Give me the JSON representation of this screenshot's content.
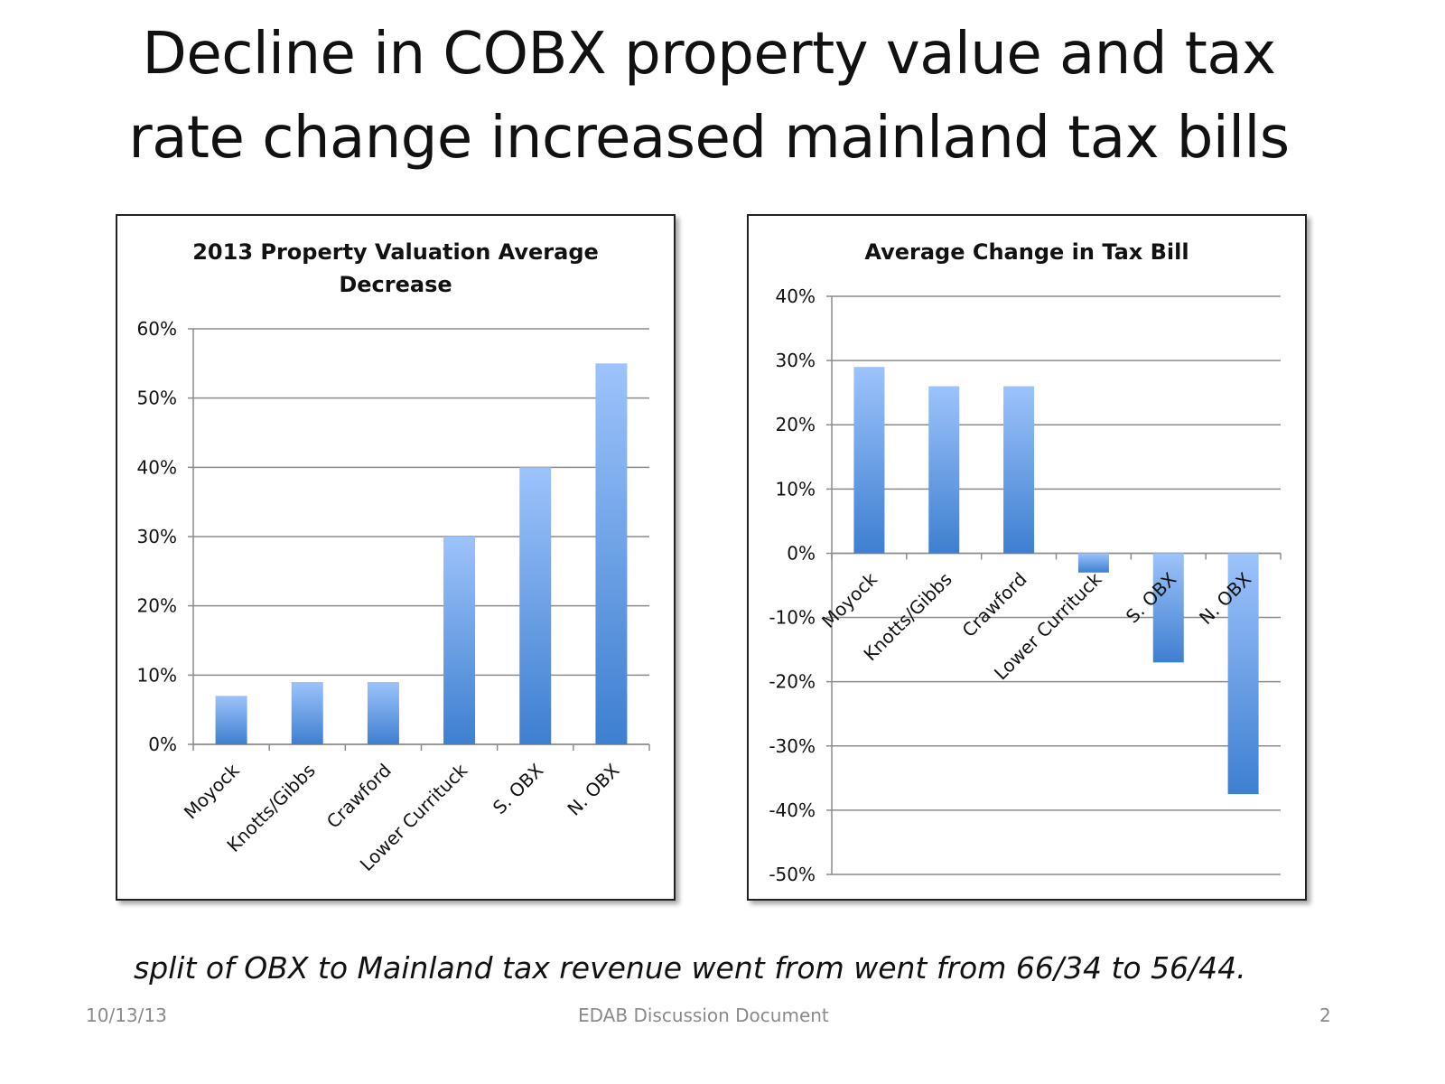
{
  "slide": {
    "title_line1": "Decline in COBX property value and tax",
    "title_line2": "rate change increased mainland tax bills",
    "note": "split of OBX to Mainland tax revenue went from went from 66/34 to 56/44.",
    "footer_date": "10/13/13",
    "footer_center": "EDAB Discussion Document",
    "page_number": "2"
  },
  "chart_data": [
    {
      "type": "bar",
      "title_line1": "2013 Property Valuation Average",
      "title_line2": "Decrease",
      "categories": [
        "Moyock",
        "Knotts/Gibbs",
        "Crawford",
        "Lower Currituck",
        "S. OBX",
        "N. OBX"
      ],
      "values": [
        7,
        9,
        9,
        30,
        40,
        55
      ],
      "ylim": [
        0,
        60
      ],
      "yticks": [
        "0%",
        "10%",
        "20%",
        "30%",
        "40%",
        "50%",
        "60%"
      ],
      "ytick_values": [
        0,
        10,
        20,
        30,
        40,
        50,
        60
      ],
      "xlabel": "",
      "ylabel": "",
      "grid": true,
      "legend": "none",
      "colors": {
        "bar_top": "#9dc3fb",
        "bar_bottom": "#3e7fd0",
        "grid": "#8c8c8c"
      }
    },
    {
      "type": "bar",
      "title_line1": "Average Change in Tax Bill",
      "categories": [
        "Moyock",
        "Knotts/Gibbs",
        "Crawford",
        "Lower Currituck",
        "S. OBX",
        "N. OBX"
      ],
      "values": [
        29,
        26,
        26,
        -3,
        -17,
        -37.5
      ],
      "ylim": [
        -50,
        40
      ],
      "yticks": [
        "-50%",
        "-40%",
        "-30%",
        "-20%",
        "-10%",
        "0%",
        "10%",
        "20%",
        "30%",
        "40%"
      ],
      "ytick_values": [
        -50,
        -40,
        -30,
        -20,
        -10,
        0,
        10,
        20,
        30,
        40
      ],
      "xlabel": "",
      "ylabel": "",
      "grid": true,
      "legend": "none",
      "colors": {
        "bar_top": "#9dc3fb",
        "bar_bottom": "#3e7fd0",
        "grid": "#8c8c8c"
      }
    }
  ]
}
